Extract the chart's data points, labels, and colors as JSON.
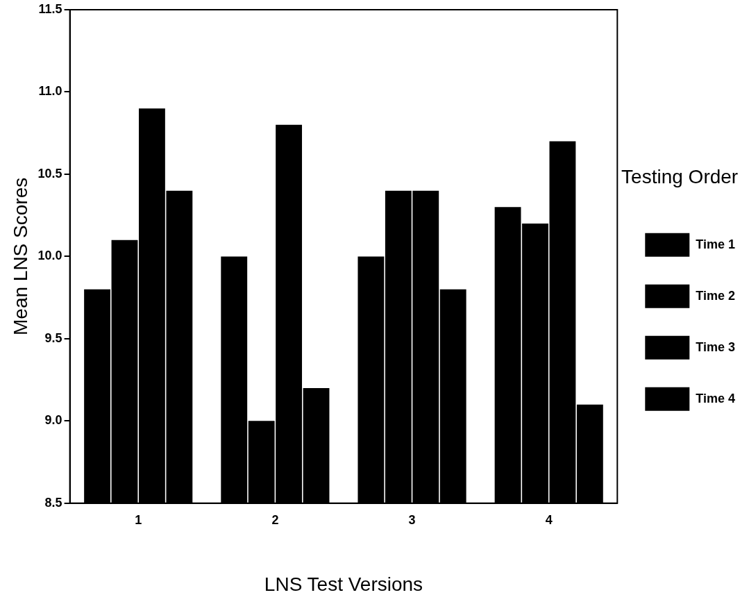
{
  "chart_data": {
    "type": "bar",
    "xlabel": "LNS Test Versions",
    "ylabel": "Mean LNS Scores",
    "legend_title": "Testing Order",
    "categories": [
      "1",
      "2",
      "3",
      "4"
    ],
    "series": [
      {
        "name": "Time 1",
        "color": "#000000",
        "values": [
          9.8,
          10.0,
          10.0,
          10.3
        ]
      },
      {
        "name": "Time 2",
        "color": "#000000",
        "values": [
          10.1,
          9.0,
          10.4,
          10.2
        ]
      },
      {
        "name": "Time 3",
        "color": "#000000",
        "values": [
          10.9,
          10.8,
          10.4,
          10.7
        ]
      },
      {
        "name": "Time 4",
        "color": "#000000",
        "values": [
          10.4,
          9.2,
          9.8,
          9.1
        ]
      }
    ],
    "ylim": [
      8.5,
      11.5
    ],
    "yticks": [
      {
        "value": 8.5,
        "label": "8.5"
      },
      {
        "value": 9.0,
        "label": "9.0"
      },
      {
        "value": 9.5,
        "label": "9.5"
      },
      {
        "value": 10.0,
        "label": "10.0"
      },
      {
        "value": 10.5,
        "label": "10.5"
      },
      {
        "value": 11.0,
        "label": "11.0"
      },
      {
        "value": 11.5,
        "label": "11.5"
      }
    ],
    "grid": false,
    "legend": "right"
  }
}
